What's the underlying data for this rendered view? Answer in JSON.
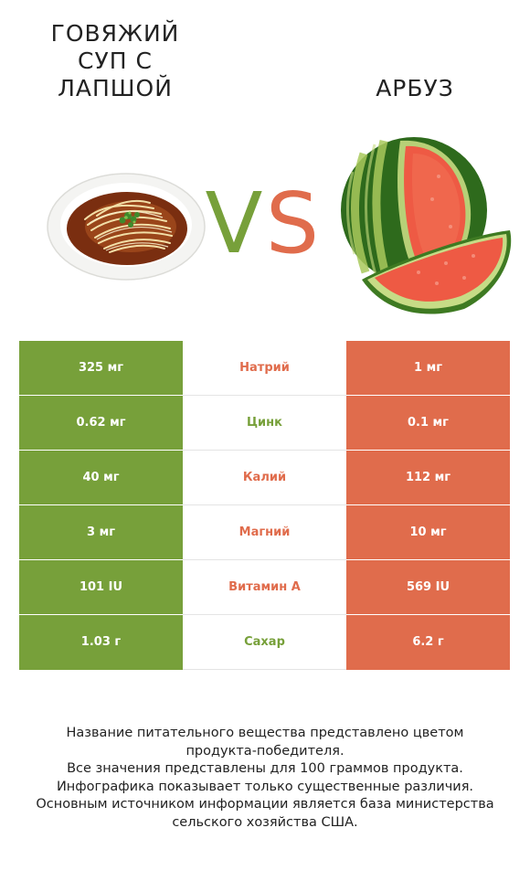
{
  "header": {
    "left_title_lines": [
      "Говяжий",
      "суп с",
      "лапшой"
    ],
    "right_title": "Арбуз",
    "vs_left": "V",
    "vs_right": "S"
  },
  "colors": {
    "left_accent": "#77a03a",
    "right_accent": "#e06c4c"
  },
  "images": {
    "left": "beef-noodle-soup-bowl",
    "right": "watermelon"
  },
  "table": {
    "rows": [
      {
        "nutrient": "Натрий",
        "left": "325 мг",
        "right": "1 мг",
        "winner": "right"
      },
      {
        "nutrient": "Цинк",
        "left": "0.62 мг",
        "right": "0.1 мг",
        "winner": "left"
      },
      {
        "nutrient": "Калий",
        "left": "40 мг",
        "right": "112 мг",
        "winner": "right"
      },
      {
        "nutrient": "Магний",
        "left": "3 мг",
        "right": "10 мг",
        "winner": "right"
      },
      {
        "nutrient": "Витамин A",
        "left": "101 IU",
        "right": "569 IU",
        "winner": "right"
      },
      {
        "nutrient": "Сахар",
        "left": "1.03 г",
        "right": "6.2 г",
        "winner": "left"
      }
    ]
  },
  "footer": {
    "lines": [
      "Название питательного вещества представлено цветом",
      "продукта-победителя.",
      "Все значения представлены для 100 граммов продукта.",
      "Инфографика показывает только существенные различия.",
      "Основным источником информации является база министерства",
      "сельского хозяйства США."
    ]
  }
}
